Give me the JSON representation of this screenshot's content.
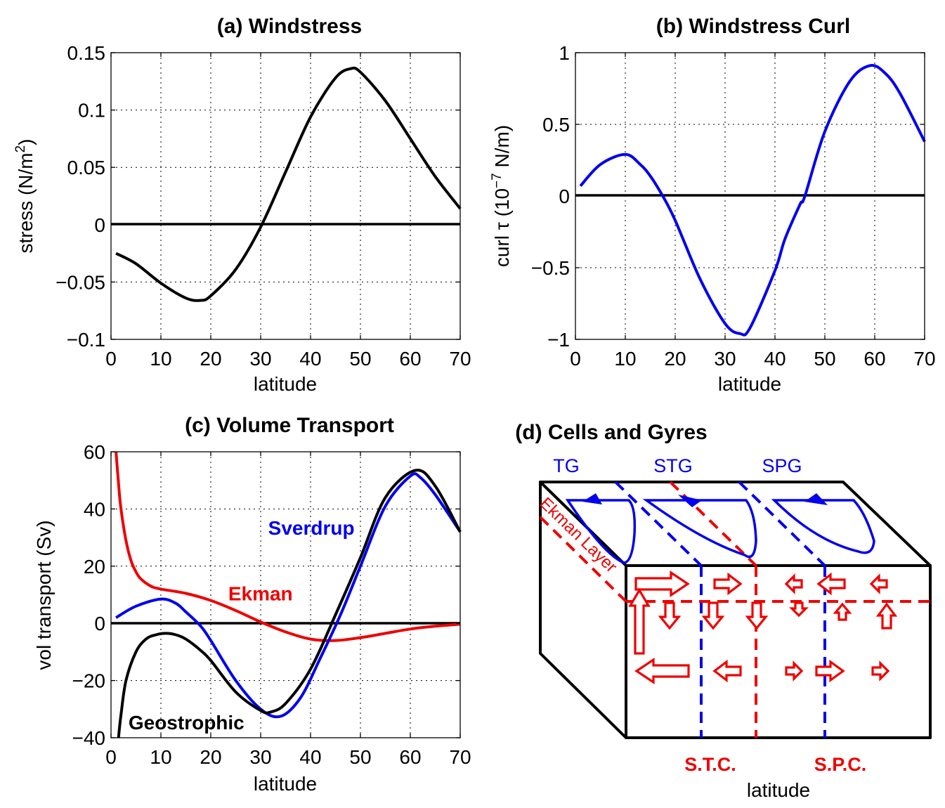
{
  "chart_data": [
    {
      "id": "a",
      "type": "line",
      "title": "(a) Windstress",
      "xlabel": "latitude",
      "ylabel": "stress (N/m",
      "ylabel_sup": "2",
      "ylabel_end": ")",
      "xlim": [
        0,
        70
      ],
      "ylim": [
        -0.1,
        0.15
      ],
      "xticks": [
        0,
        10,
        20,
        30,
        40,
        50,
        60,
        70
      ],
      "xtick_labels": [
        "0",
        "10",
        "20",
        "30",
        "40",
        "50",
        "60",
        "70"
      ],
      "yticks": [
        -0.1,
        -0.05,
        0,
        0.05,
        0.1,
        0.15
      ],
      "ytick_labels": [
        "−0.1",
        "−0.05",
        "0",
        "0.05",
        "0.1",
        "0.15"
      ],
      "grid": true,
      "zero_line": true,
      "series": [
        {
          "color": "#000000",
          "x": [
            1,
            5,
            10,
            15,
            18,
            20,
            25,
            30,
            35,
            40,
            45,
            48,
            50,
            55,
            60,
            65,
            70
          ],
          "y": [
            -0.025,
            -0.034,
            -0.051,
            -0.064,
            -0.066,
            -0.062,
            -0.039,
            -0.002,
            0.046,
            0.094,
            0.128,
            0.136,
            0.133,
            0.108,
            0.075,
            0.042,
            0.014
          ]
        }
      ]
    },
    {
      "id": "b",
      "type": "line",
      "title": "(b) Windstress Curl",
      "xlabel": "latitude",
      "ylabel": "curl τ (10",
      "ylabel_sup": "−7",
      "ylabel_end": " N/m)",
      "xlim": [
        0,
        70
      ],
      "ylim": [
        -1,
        1
      ],
      "xticks": [
        0,
        10,
        20,
        30,
        40,
        50,
        60,
        70
      ],
      "xtick_labels": [
        "0",
        "10",
        "20",
        "30",
        "40",
        "50",
        "60",
        "70"
      ],
      "yticks": [
        -1,
        -0.5,
        0,
        0.5,
        1
      ],
      "ytick_labels": [
        "−1",
        "−0.5",
        "0",
        "0.5",
        "1"
      ],
      "grid": true,
      "zero_line": true,
      "series": [
        {
          "color": "#0000ee",
          "x": [
            1,
            5,
            10,
            13,
            15,
            17.5,
            20,
            25,
            30,
            33,
            35,
            40,
            42,
            45,
            46,
            50,
            55,
            59,
            62,
            65,
            70
          ],
          "y": [
            0.07,
            0.22,
            0.29,
            0.22,
            0.14,
            0.0,
            -0.17,
            -0.58,
            -0.89,
            -0.96,
            -0.92,
            -0.52,
            -0.3,
            -0.06,
            0.0,
            0.45,
            0.8,
            0.91,
            0.86,
            0.72,
            0.38
          ]
        }
      ]
    },
    {
      "id": "c",
      "type": "line",
      "title": "(c) Volume Transport",
      "xlabel": "latitude",
      "ylabel": "vol transport (Sv)",
      "xlim": [
        0,
        70
      ],
      "ylim": [
        -40,
        60
      ],
      "xticks": [
        0,
        10,
        20,
        30,
        40,
        50,
        60,
        70
      ],
      "xtick_labels": [
        "0",
        "10",
        "20",
        "30",
        "40",
        "50",
        "60",
        "70"
      ],
      "yticks": [
        -40,
        -20,
        0,
        20,
        40,
        60
      ],
      "ytick_labels": [
        "−40",
        "−20",
        "0",
        "20",
        "40",
        "60"
      ],
      "grid": true,
      "zero_line": true,
      "series": [
        {
          "name": "Ekman",
          "color": "#ee0000",
          "x": [
            1,
            1.5,
            2,
            3,
            4,
            5,
            6,
            8,
            10,
            15,
            20,
            25,
            30,
            35,
            40,
            45,
            50,
            55,
            60,
            65,
            70
          ],
          "y": [
            60,
            49,
            40,
            29,
            22,
            18,
            15.5,
            13,
            12,
            10.5,
            8,
            4.5,
            0.5,
            -3,
            -5.5,
            -6,
            -5,
            -3.5,
            -2,
            -1,
            -0.3
          ]
        },
        {
          "name": "Sverdrup",
          "color": "#0000ee",
          "x": [
            1,
            5,
            10,
            13,
            15,
            18,
            20,
            25,
            30,
            34,
            38,
            42,
            46,
            50,
            55,
            60,
            62,
            65,
            70
          ],
          "y": [
            2,
            6,
            8.5,
            7,
            4,
            -1,
            -6,
            -20,
            -30,
            -32.5,
            -26,
            -12,
            3,
            20,
            41,
            51.5,
            51,
            45,
            32
          ]
        },
        {
          "name": "Geostrophic",
          "color": "#000000",
          "x": [
            1.5,
            2,
            3,
            5,
            7,
            9,
            11,
            13,
            15,
            18,
            20,
            25,
            30,
            32,
            35,
            40,
            45,
            50,
            55,
            61,
            65,
            70
          ],
          "y": [
            -40,
            -32,
            -20,
            -10,
            -5.5,
            -4,
            -3.5,
            -4,
            -5.5,
            -9.5,
            -13,
            -24,
            -30.5,
            -31,
            -28,
            -16,
            3,
            23,
            44,
            53.5,
            48,
            32
          ]
        }
      ],
      "annotations": [
        {
          "text": "Sverdrup",
          "color": "#0000ee",
          "x": 31.5,
          "y": 31
        },
        {
          "text": "Ekman",
          "color": "#ee0000",
          "x": 23.5,
          "y": 8
        },
        {
          "text": "Geostrophic",
          "color": "#000000",
          "x": 3.5,
          "y": -37
        }
      ]
    }
  ],
  "schematic": {
    "title": "(d) Cells and Gyres",
    "gyre_labels": [
      "TG",
      "STG",
      "SPG"
    ],
    "layer_label": "Ekman Layer",
    "cell_labels": [
      "S.T.C.",
      "S.P.C."
    ],
    "xlabel": "latitude",
    "colors": {
      "gyre": "#0000ee",
      "cell": "#ee0000",
      "box": "#000000"
    }
  }
}
